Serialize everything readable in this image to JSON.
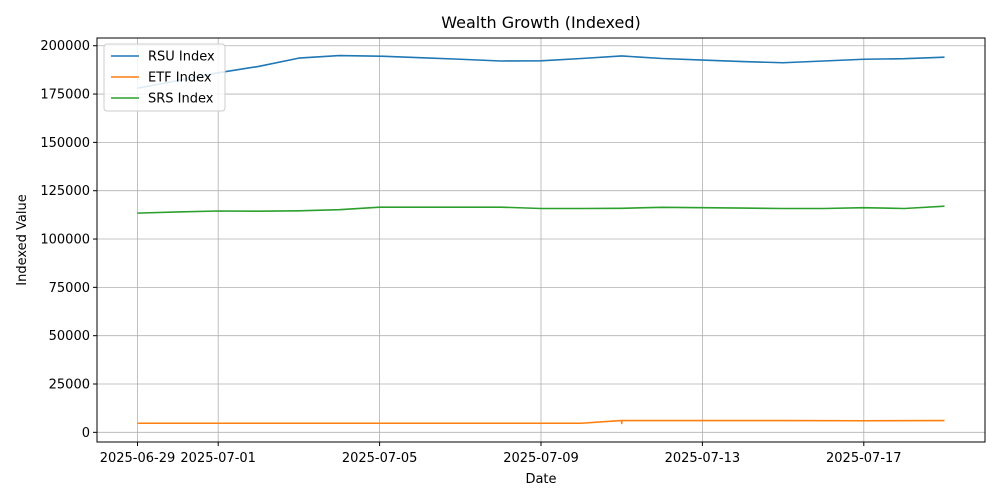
{
  "chart_data": {
    "type": "line",
    "title": "Wealth Growth (Indexed)",
    "xlabel": "Date",
    "ylabel": "Indexed Value",
    "x_ticks": [
      "2025-06-29",
      "2025-07-01",
      "2025-07-05",
      "2025-07-09",
      "2025-07-13",
      "2025-07-17"
    ],
    "y_ticks": [
      "0",
      "25000",
      "50000",
      "75000",
      "100000",
      "125000",
      "150000",
      "175000",
      "200000"
    ],
    "xlim": [
      "2025-06-28",
      "2025-07-20"
    ],
    "ylim": [
      -5000,
      204000
    ],
    "grid": true,
    "legend_position": "top-left",
    "series": [
      {
        "name": "RSU Index",
        "color": "#1f77b4",
        "points": [
          [
            "2025-06-29",
            178000
          ],
          [
            "2025-07-01",
            186000
          ],
          [
            "2025-07-02",
            189300
          ],
          [
            "2025-07-03",
            193600
          ],
          [
            "2025-07-04",
            194900
          ],
          [
            "2025-07-05",
            194600
          ],
          [
            "2025-07-06",
            193800
          ],
          [
            "2025-07-07",
            193000
          ],
          [
            "2025-07-08",
            192100
          ],
          [
            "2025-07-09",
            192200
          ],
          [
            "2025-07-10",
            193400
          ],
          [
            "2025-07-11",
            194700
          ],
          [
            "2025-07-12",
            193400
          ],
          [
            "2025-07-13",
            192600
          ],
          [
            "2025-07-14",
            191800
          ],
          [
            "2025-07-15",
            191200
          ],
          [
            "2025-07-16",
            192100
          ],
          [
            "2025-07-17",
            193000
          ],
          [
            "2025-07-18",
            193300
          ],
          [
            "2025-07-19",
            194100
          ]
        ]
      },
      {
        "name": "ETF Index",
        "color": "#ff7f0e",
        "points": [
          [
            "2025-06-29",
            4700
          ],
          [
            "2025-07-01",
            4700
          ],
          [
            "2025-07-05",
            4700
          ],
          [
            "2025-07-09",
            4700
          ],
          [
            "2025-07-10",
            4700
          ],
          [
            "2025-07-10 20:00",
            5900
          ],
          [
            "2025-07-11",
            6100
          ],
          [
            "2025-07-11",
            4600
          ],
          [
            "2025-07-11",
            6100
          ],
          [
            "2025-07-13",
            6100
          ],
          [
            "2025-07-15",
            6100
          ],
          [
            "2025-07-17",
            6000
          ],
          [
            "2025-07-19",
            6100
          ]
        ]
      },
      {
        "name": "SRS Index",
        "color": "#2ca02c",
        "points": [
          [
            "2025-06-29",
            113400
          ],
          [
            "2025-06-30",
            114000
          ],
          [
            "2025-07-01",
            114500
          ],
          [
            "2025-07-02",
            114400
          ],
          [
            "2025-07-03",
            114600
          ],
          [
            "2025-07-04",
            115200
          ],
          [
            "2025-07-05",
            116500
          ],
          [
            "2025-07-06",
            116500
          ],
          [
            "2025-07-07",
            116500
          ],
          [
            "2025-07-08",
            116500
          ],
          [
            "2025-07-09",
            115800
          ],
          [
            "2025-07-10",
            115800
          ],
          [
            "2025-07-11",
            115900
          ],
          [
            "2025-07-12",
            116400
          ],
          [
            "2025-07-13",
            116200
          ],
          [
            "2025-07-14",
            116000
          ],
          [
            "2025-07-15",
            115800
          ],
          [
            "2025-07-16",
            115800
          ],
          [
            "2025-07-17",
            116200
          ],
          [
            "2025-07-18",
            115800
          ],
          [
            "2025-07-19",
            117000
          ]
        ]
      }
    ]
  }
}
